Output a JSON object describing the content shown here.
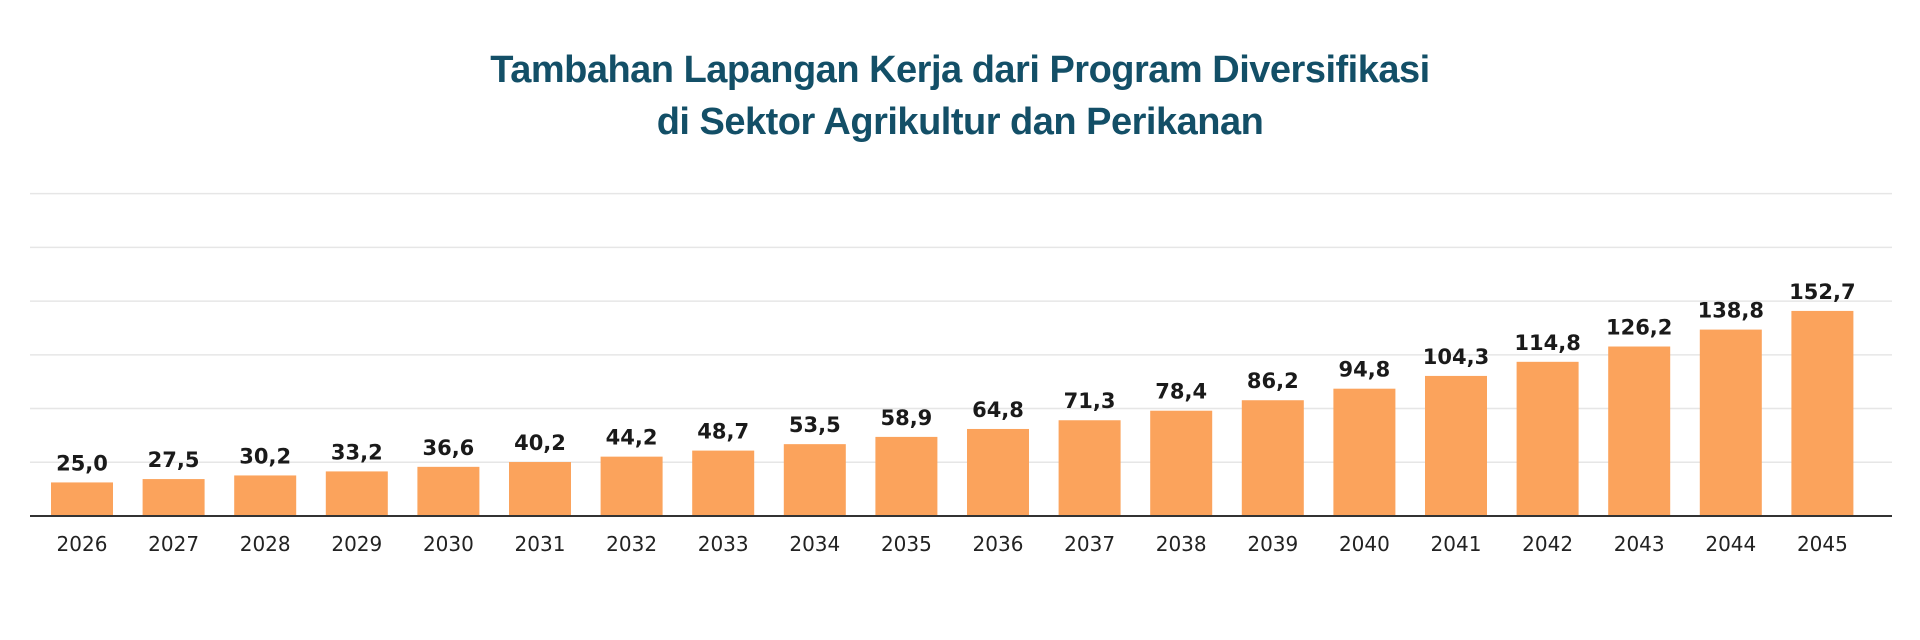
{
  "chart_data": {
    "type": "bar",
    "title_line1": "Tambahan Lapangan Kerja dari Program Diversifikasi",
    "title_line2": "di Sektor Agrikultur dan Perikanan",
    "categories": [
      "2026",
      "2027",
      "2028",
      "2029",
      "2030",
      "2031",
      "2032",
      "2033",
      "2034",
      "2035",
      "2036",
      "2037",
      "2038",
      "2039",
      "2040",
      "2041",
      "2042",
      "2043",
      "2044",
      "2045"
    ],
    "values": [
      25.0,
      27.5,
      30.2,
      33.2,
      36.6,
      40.2,
      44.2,
      48.7,
      53.5,
      58.9,
      64.8,
      71.3,
      78.4,
      86.2,
      94.8,
      104.3,
      114.8,
      126.2,
      138.8,
      152.7
    ],
    "value_labels": [
      "25,0",
      "27,5",
      "30,2",
      "33,2",
      "36,6",
      "40,2",
      "44,2",
      "48,7",
      "53,5",
      "58,9",
      "64,8",
      "71,3",
      "78,4",
      "86,2",
      "94,8",
      "104,3",
      "114,8",
      "126,2",
      "138,8",
      "152,7"
    ],
    "ylim": [
      0,
      240
    ],
    "grid": true,
    "colors": {
      "bar": "#fba35c",
      "title": "#134f67",
      "grid": "#e6e6e6",
      "axis": "#333333"
    }
  }
}
